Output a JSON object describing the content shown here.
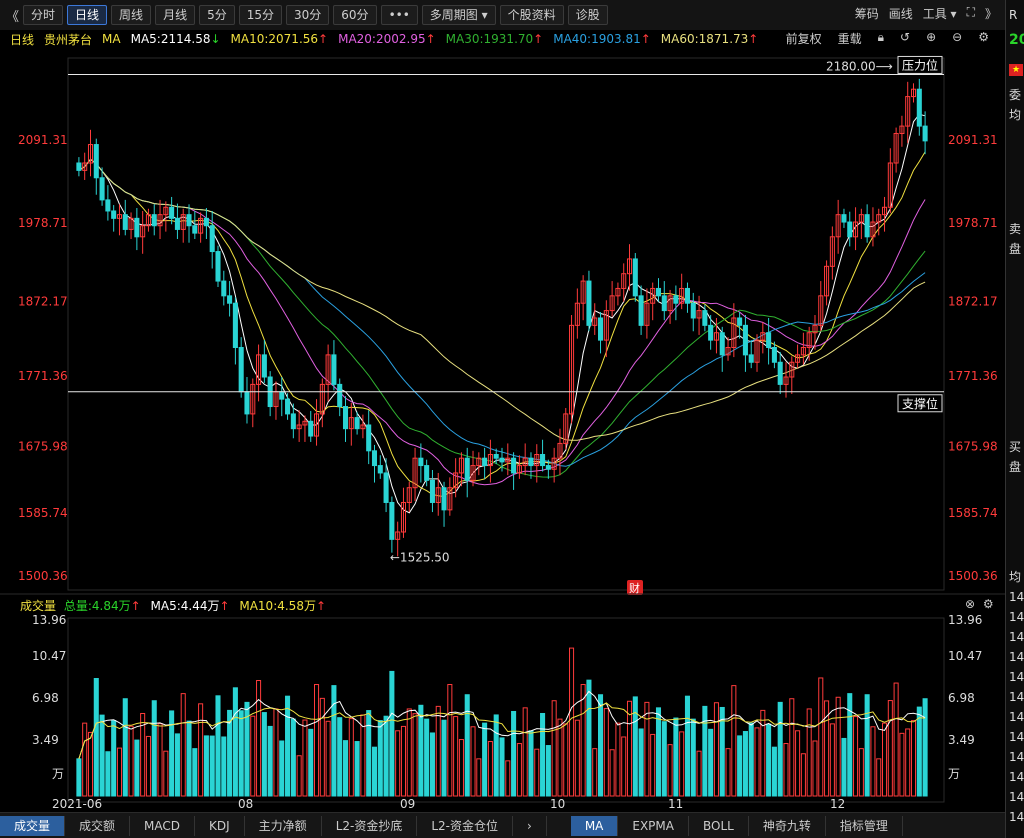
{
  "toolbar": {
    "prev": "《",
    "buttons": [
      "分时",
      "日线",
      "周线",
      "月线",
      "5分",
      "15分",
      "30分",
      "60分",
      "•••",
      "多周期图 ▾",
      "个股资料",
      "诊股"
    ],
    "active_index": 1,
    "right": [
      "筹码",
      "画线",
      "工具 ▾",
      "⛶",
      "》"
    ]
  },
  "info": {
    "period": "日线",
    "stock": "贵州茅台",
    "ma_label": "MA",
    "ma5": "MA5:2114.58",
    "ma10": "MA10:2071.56",
    "ma20": "MA20:2002.95",
    "ma30": "MA30:1931.70",
    "ma40": "MA40:1903.81",
    "ma60": "MA60:1871.73",
    "adjust": "前复权",
    "reload": "重载"
  },
  "colors": {
    "up": "#ff3b3b",
    "down": "#2ad4d4",
    "ma5": "#ffffff",
    "ma10": "#f0e040",
    "ma20": "#e060e0",
    "ma30": "#30b030",
    "ma40": "#2aa0e0",
    "ma60": "#e8e080",
    "axis": "#ff3b3b"
  },
  "price_axis": [
    "2091.31",
    "1978.71",
    "1872.17",
    "1771.36",
    "1675.98",
    "1585.74",
    "1500.36"
  ],
  "annotations": {
    "high_price": "2180.00",
    "low_price": "1525.50",
    "resistance": "压力位",
    "support": "支撑位",
    "finance_badge": "财"
  },
  "volume": {
    "title": "成交量",
    "total": "总量:4.84万",
    "ma5": "MA5:4.44万",
    "ma10": "MA10:4.58万",
    "axis": [
      "13.96",
      "10.47",
      "6.98",
      "3.49",
      "万"
    ]
  },
  "date_axis": [
    "2021-06",
    "08",
    "09",
    "10",
    "11",
    "12"
  ],
  "tabs_left": [
    "成交量",
    "成交额",
    "MACD",
    "KDJ",
    "主力净额",
    "L2-资金抄底",
    "L2-资金仓位"
  ],
  "tabs_right": [
    "MA",
    "EXPMA",
    "BOLL",
    "神奇九转",
    "指标管理"
  ],
  "side_panel": {
    "top": "R",
    "value": "20",
    "items": [
      "委",
      "均",
      "卖",
      "盘",
      "买",
      "盘",
      "均"
    ],
    "numbers": [
      "14",
      "14",
      "14",
      "14",
      "14",
      "14",
      "14",
      "14",
      "14",
      "14",
      "14",
      "14"
    ]
  },
  "chart_data": {
    "type": "candlestick",
    "title": "贵州茅台 日线",
    "x_ticks": [
      "2021-06",
      "08",
      "09",
      "10",
      "11",
      "12"
    ],
    "y_ticks": [
      2091.31,
      1978.71,
      1872.17,
      1771.36,
      1675.98,
      1585.74,
      1500.36
    ],
    "ylim": [
      1500.36,
      2205
    ],
    "resistance_level": 2180.0,
    "support_level": 1750.0,
    "period_low": 1525.5,
    "close": [
      2050,
      2060,
      2085,
      2040,
      2010,
      1995,
      1985,
      1990,
      1970,
      1985,
      1960,
      1975,
      1990,
      1975,
      1990,
      2000,
      1985,
      1970,
      1990,
      1975,
      1965,
      1985,
      1975,
      1940,
      1900,
      1880,
      1870,
      1810,
      1750,
      1720,
      1760,
      1800,
      1770,
      1730,
      1750,
      1740,
      1720,
      1700,
      1705,
      1710,
      1690,
      1720,
      1760,
      1800,
      1760,
      1730,
      1700,
      1715,
      1700,
      1705,
      1670,
      1650,
      1640,
      1600,
      1550,
      1560,
      1600,
      1620,
      1660,
      1650,
      1630,
      1600,
      1620,
      1590,
      1620,
      1640,
      1660,
      1630,
      1650,
      1660,
      1650,
      1665,
      1660,
      1655,
      1660,
      1640,
      1650,
      1660,
      1650,
      1665,
      1650,
      1645,
      1660,
      1680,
      1720,
      1840,
      1870,
      1900,
      1840,
      1850,
      1820,
      1860,
      1880,
      1890,
      1910,
      1930,
      1880,
      1840,
      1870,
      1890,
      1880,
      1860,
      1880,
      1870,
      1890,
      1870,
      1850,
      1860,
      1840,
      1820,
      1830,
      1800,
      1810,
      1850,
      1840,
      1800,
      1790,
      1820,
      1830,
      1810,
      1790,
      1760,
      1770,
      1790,
      1800,
      1810,
      1830,
      1840,
      1880,
      1920,
      1960,
      1990,
      1980,
      1960,
      1980,
      1990,
      1960,
      1980,
      1990,
      2000,
      2060,
      2100,
      2110,
      2150,
      2160,
      2110,
      2090
    ]
  }
}
